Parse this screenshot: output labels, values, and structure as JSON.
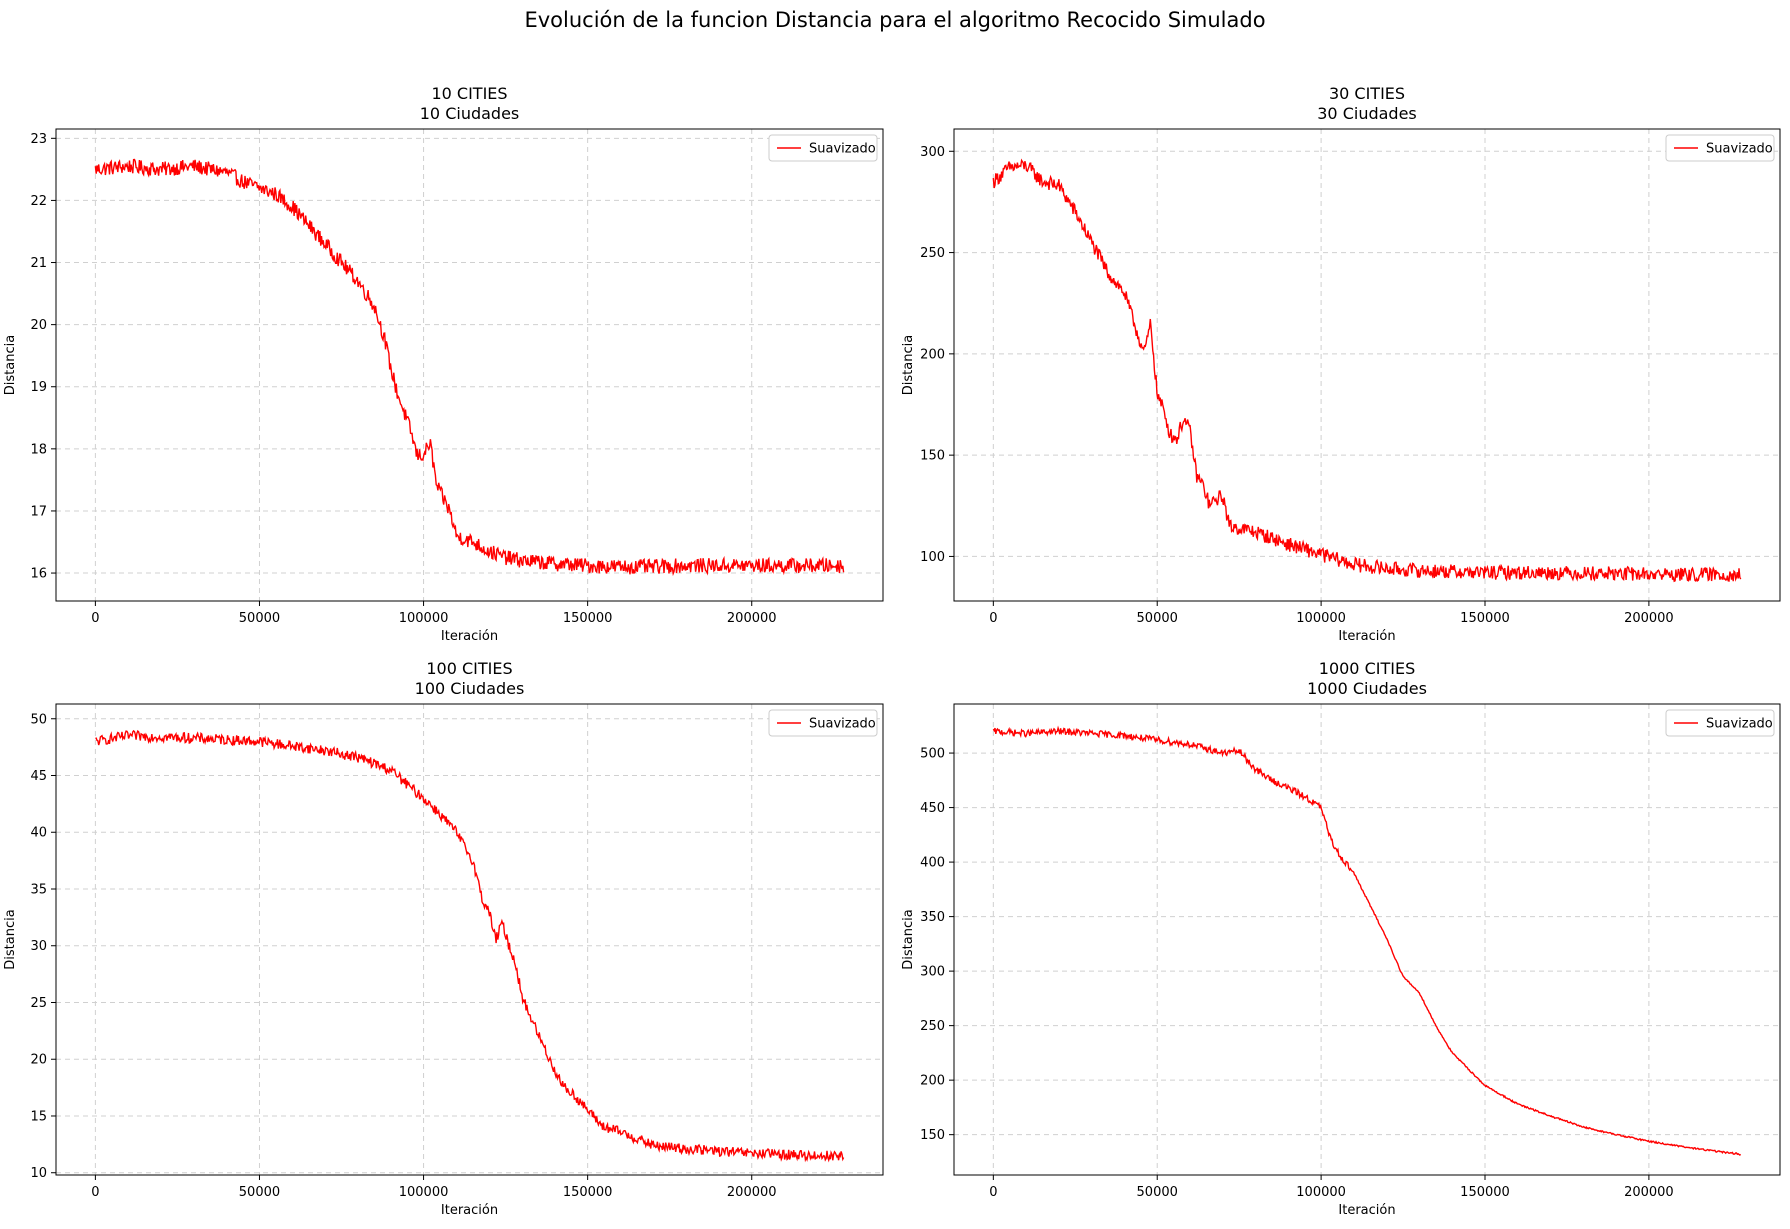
{
  "figure": {
    "title": "Evolución de la funcion Distancia para el algoritmo Recocido Simulado"
  },
  "style": {
    "line_color": "#ff0000",
    "grid_color": "#d0d0d0"
  },
  "chart_data": [
    {
      "type": "line",
      "title": "10 CITIES",
      "subtitle": "10 Ciudades",
      "xlabel": "Iteración",
      "ylabel": "Distancia",
      "xlim": [
        -12000,
        240000
      ],
      "ylim": [
        15.55,
        23.15
      ],
      "xticks": [
        0,
        50000,
        100000,
        150000,
        200000
      ],
      "yticks": [
        16,
        17,
        18,
        19,
        20,
        21,
        22,
        23
      ],
      "grid": true,
      "legend": "top-right",
      "series": [
        {
          "name": "Suavizado",
          "color": "#ff0000",
          "noise": 0.12,
          "x": [
            0,
            10000,
            20000,
            30000,
            40000,
            45000,
            50000,
            55000,
            60000,
            65000,
            70000,
            75000,
            80000,
            85000,
            88000,
            90000,
            92000,
            94000,
            96000,
            98000,
            100000,
            102000,
            104000,
            106000,
            108000,
            110000,
            115000,
            120000,
            125000,
            130000,
            140000,
            150000,
            160000,
            170000,
            180000,
            190000,
            200000,
            210000,
            220000,
            228000
          ],
          "y": [
            22.5,
            22.55,
            22.5,
            22.55,
            22.45,
            22.3,
            22.2,
            22.1,
            21.9,
            21.6,
            21.3,
            21.0,
            20.7,
            20.3,
            19.8,
            19.3,
            18.9,
            18.6,
            18.3,
            17.9,
            17.9,
            18.1,
            17.4,
            17.2,
            17.0,
            16.6,
            16.5,
            16.35,
            16.25,
            16.2,
            16.15,
            16.12,
            16.1,
            16.1,
            16.12,
            16.12,
            16.12,
            16.12,
            16.12,
            16.12
          ]
        }
      ]
    },
    {
      "type": "line",
      "title": "30 CITIES",
      "subtitle": "30 Ciudades",
      "xlabel": "Iteración",
      "ylabel": "Distancia",
      "xlim": [
        -12000,
        240000
      ],
      "ylim": [
        78,
        311
      ],
      "xticks": [
        0,
        50000,
        100000,
        150000,
        200000
      ],
      "yticks": [
        100,
        150,
        200,
        250,
        300
      ],
      "grid": true,
      "legend": "top-right",
      "series": [
        {
          "name": "Suavizado",
          "color": "#ff0000",
          "noise": 3.5,
          "x": [
            0,
            5000,
            10000,
            15000,
            20000,
            25000,
            30000,
            35000,
            40000,
            43000,
            46000,
            48000,
            50000,
            52000,
            54000,
            56000,
            58000,
            60000,
            62000,
            64000,
            66000,
            68000,
            70000,
            72000,
            75000,
            80000,
            90000,
            100000,
            110000,
            120000,
            130000,
            150000,
            170000,
            190000,
            210000,
            228000
          ],
          "y": [
            285,
            292,
            293,
            285,
            283,
            270,
            255,
            240,
            230,
            215,
            200,
            215,
            180,
            172,
            160,
            158,
            168,
            162,
            140,
            135,
            125,
            128,
            130,
            115,
            114,
            112,
            106,
            101,
            96,
            94,
            93,
            92,
            92,
            91.5,
            91,
            91
          ]
        }
      ]
    },
    {
      "type": "line",
      "title": "100 CITIES",
      "subtitle": "100 Ciudades",
      "xlabel": "Iteración",
      "ylabel": "Distancia",
      "xlim": [
        -12000,
        240000
      ],
      "ylim": [
        9.8,
        51.3
      ],
      "xticks": [
        0,
        50000,
        100000,
        150000,
        200000
      ],
      "yticks": [
        10,
        15,
        20,
        25,
        30,
        35,
        40,
        45,
        50
      ],
      "grid": true,
      "legend": "top-right",
      "series": [
        {
          "name": "Suavizado",
          "color": "#ff0000",
          "noise": 0.45,
          "x": [
            0,
            10000,
            30000,
            50000,
            60000,
            70000,
            80000,
            90000,
            95000,
            100000,
            105000,
            110000,
            115000,
            118000,
            120000,
            122000,
            124000,
            126000,
            128000,
            130000,
            133000,
            136000,
            140000,
            143000,
            146000,
            150000,
            155000,
            160000,
            165000,
            170000,
            180000,
            190000,
            200000,
            210000,
            220000,
            228000
          ],
          "y": [
            48,
            48.5,
            48.3,
            48,
            47.6,
            47.2,
            46.6,
            45.5,
            44.2,
            43,
            41.6,
            40,
            37.5,
            34,
            33,
            30.5,
            32,
            30,
            28.5,
            25.5,
            23.5,
            21.5,
            19,
            17.5,
            16.8,
            15.5,
            14,
            13.6,
            13.0,
            12.4,
            12.1,
            11.9,
            11.7,
            11.6,
            11.5,
            11.5
          ]
        }
      ]
    },
    {
      "type": "line",
      "title": "1000 CITIES",
      "subtitle": "1000 Ciudades",
      "xlabel": "Iteración",
      "ylabel": "Distancia",
      "xlim": [
        -12000,
        240000
      ],
      "ylim": [
        113,
        545
      ],
      "xticks": [
        0,
        50000,
        100000,
        150000,
        200000
      ],
      "yticks": [
        150,
        200,
        250,
        300,
        350,
        400,
        450,
        500
      ],
      "grid": true,
      "legend": "top-right",
      "series": [
        {
          "name": "Suavizado",
          "color": "#ff0000",
          "noise": 3.0,
          "x": [
            0,
            10000,
            20000,
            30000,
            40000,
            50000,
            60000,
            70000,
            75000,
            80000,
            85000,
            90000,
            95000,
            100000,
            103000,
            106000,
            110000,
            115000,
            120000,
            125000,
            130000,
            135000,
            140000,
            145000,
            150000,
            160000,
            170000,
            180000,
            190000,
            200000,
            210000,
            220000,
            228000
          ],
          "y": [
            520,
            518,
            520,
            518,
            516,
            512,
            508,
            500,
            502,
            485,
            475,
            468,
            460,
            450,
            420,
            405,
            390,
            360,
            330,
            295,
            280,
            250,
            225,
            210,
            195,
            178,
            167,
            157,
            150,
            144,
            139,
            135,
            132
          ]
        }
      ]
    }
  ]
}
